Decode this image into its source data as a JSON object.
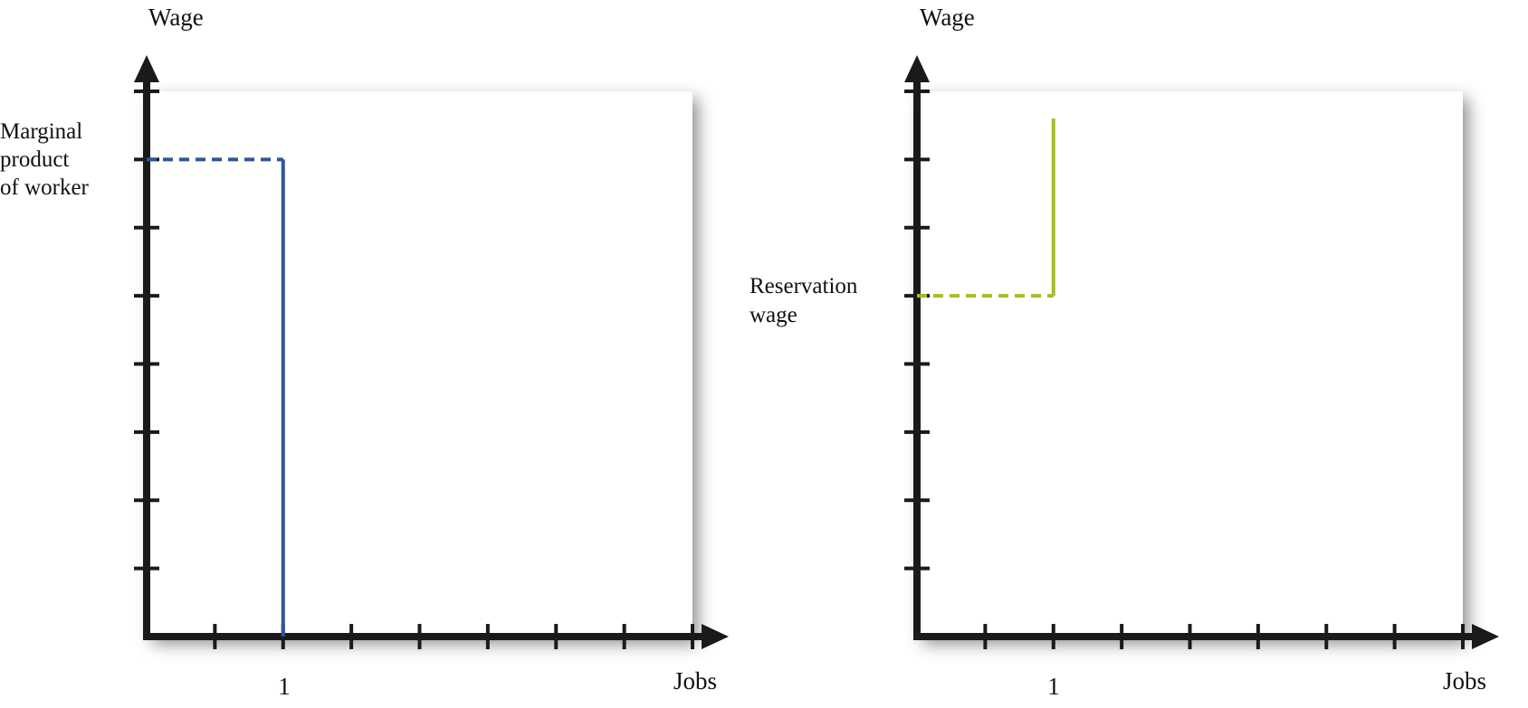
{
  "colors": {
    "axis": "#1a1a1a",
    "demand": "#2f5597",
    "supply": "#a8bb2a"
  },
  "chart_data": [
    {
      "type": "line",
      "ylabel": "Wage",
      "xlabel": "Jobs",
      "xlim": [
        0,
        8
      ],
      "ylim": [
        0,
        8
      ],
      "x_tick_labels": [
        {
          "x": 2,
          "label": "1"
        }
      ],
      "annotation": {
        "lines": [
          "Marginal",
          "product",
          "of worker"
        ],
        "y": 7
      },
      "series": [
        {
          "color": "#2f5597",
          "solid": [
            [
              2,
              0
            ],
            [
              2,
              7
            ]
          ],
          "dashed": [
            [
              0,
              7
            ],
            [
              2,
              7
            ]
          ]
        }
      ]
    },
    {
      "type": "line",
      "ylabel": "Wage",
      "xlabel": "Jobs",
      "xlim": [
        0,
        8
      ],
      "ylim": [
        0,
        8
      ],
      "x_tick_labels": [
        {
          "x": 2,
          "label": "1"
        }
      ],
      "annotation": {
        "lines": [
          "Reservation",
          "wage"
        ],
        "y": 5
      },
      "series": [
        {
          "color": "#a8bb2a",
          "solid": [
            [
              2,
              5
            ],
            [
              2,
              7.6
            ]
          ],
          "dashed": [
            [
              0,
              5
            ],
            [
              2,
              5
            ]
          ]
        }
      ]
    }
  ]
}
